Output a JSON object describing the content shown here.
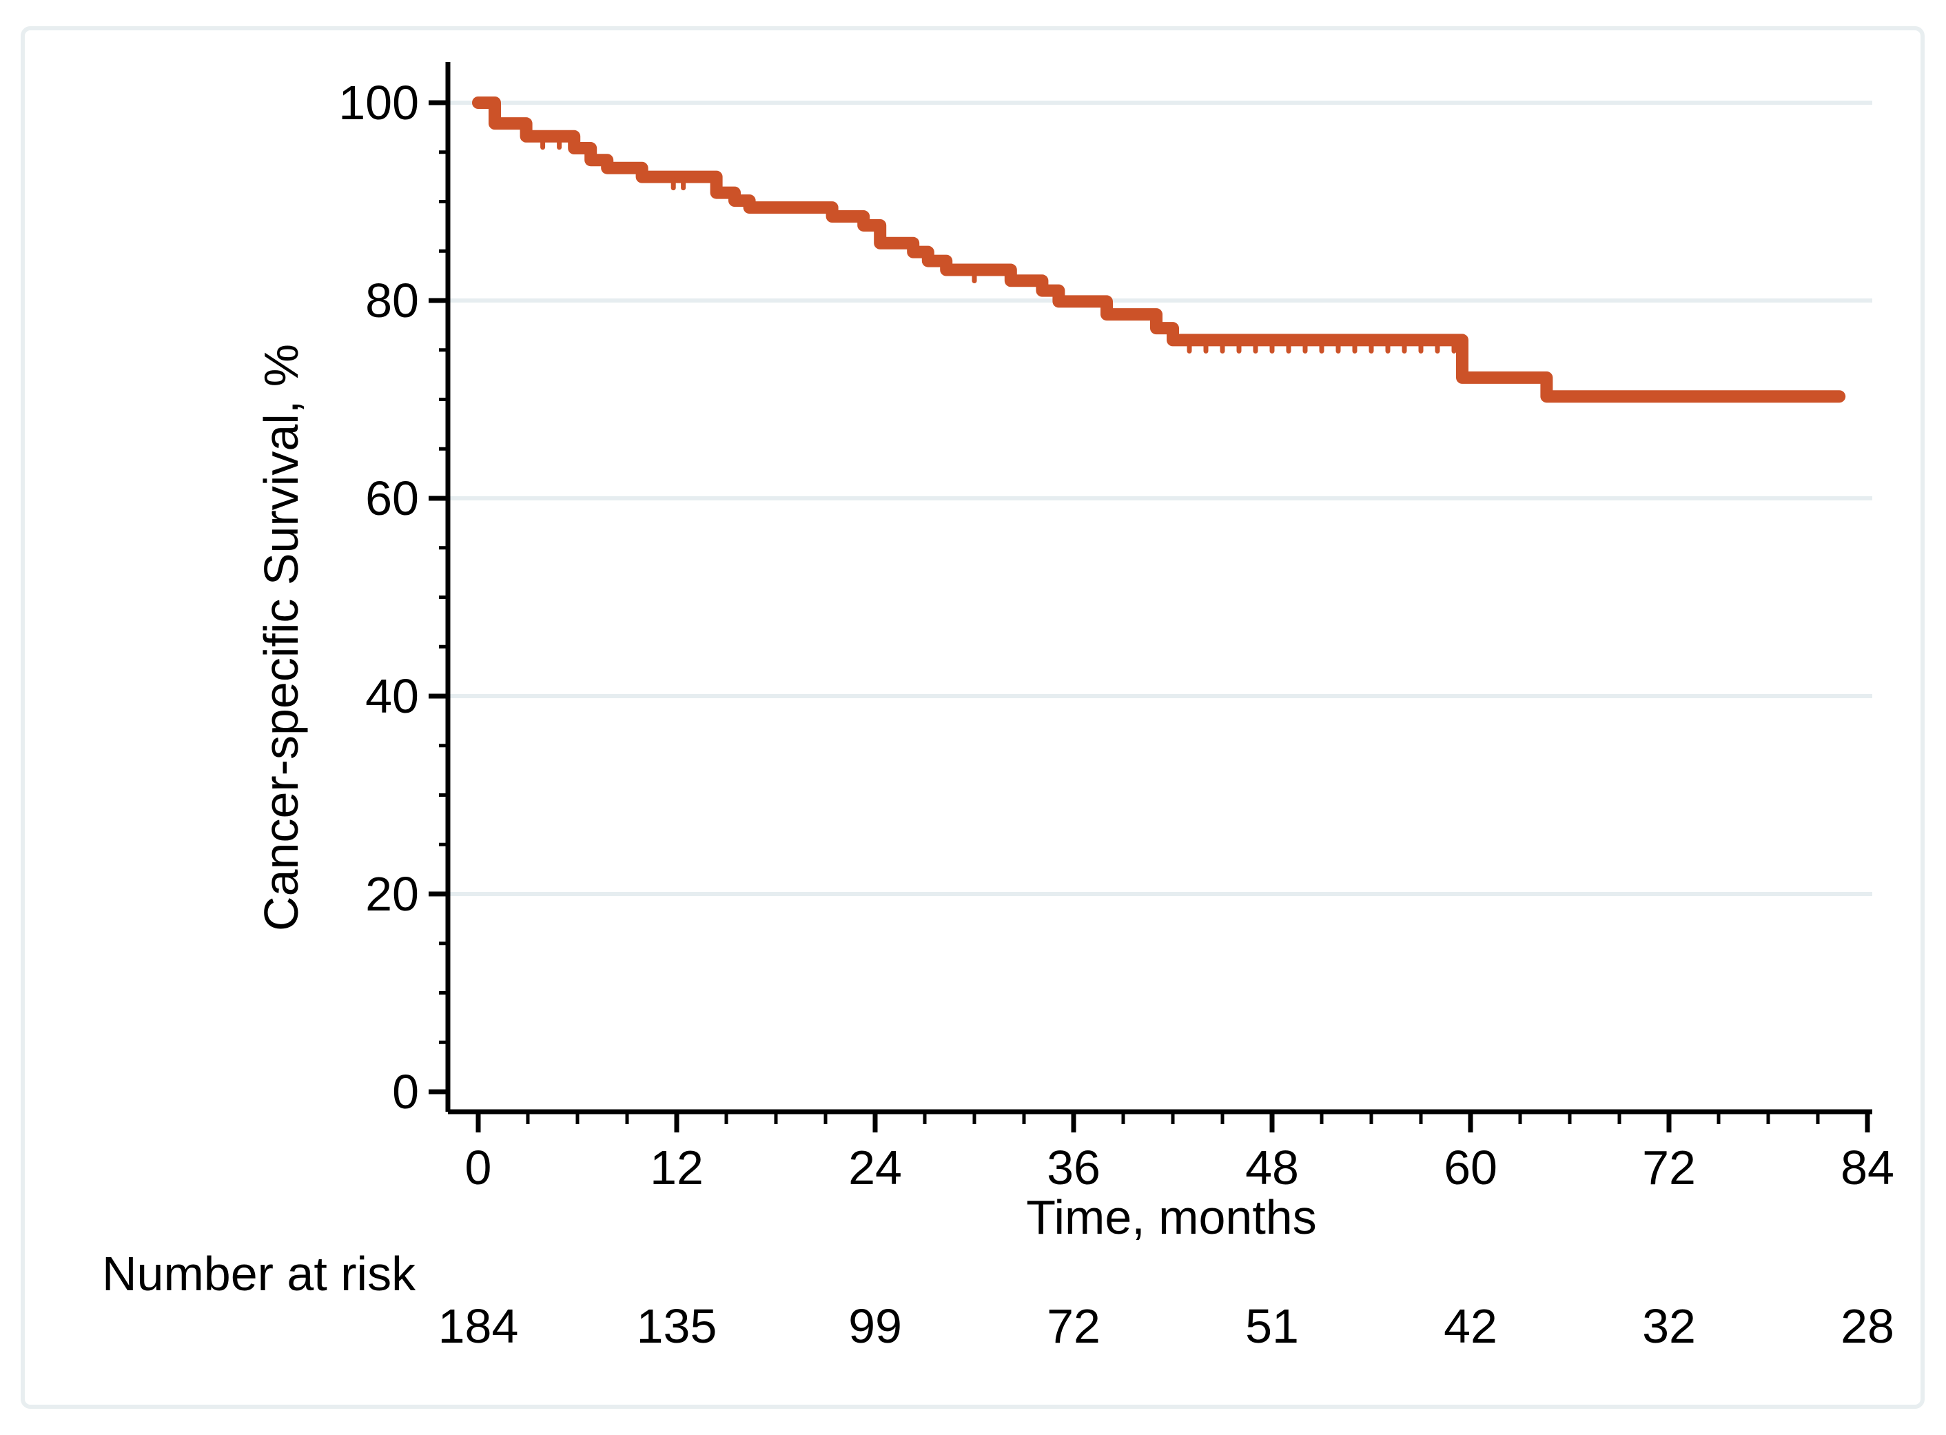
{
  "chart_data": {
    "type": "line",
    "subtype": "kaplan_meier_step",
    "title": "",
    "xlabel": "Time, months",
    "ylabel": "Cancer-specific Survival, %",
    "xlim": [
      0,
      84
    ],
    "ylim": [
      0,
      100
    ],
    "x_major_ticks": [
      0,
      12,
      24,
      36,
      48,
      60,
      72,
      84
    ],
    "x_minor_tick_step": 3,
    "y_major_ticks": [
      0,
      20,
      40,
      60,
      80,
      100
    ],
    "y_minor_tick_step": 5,
    "y_gridlines": [
      20,
      40,
      60,
      80,
      100
    ],
    "grid": true,
    "legend": "none",
    "axis_color": "#000000",
    "grid_color": "#e6edf0",
    "series": [
      {
        "name": "Cancer-specific survival",
        "color": "#cc5228",
        "steps": [
          [
            0,
            100
          ],
          [
            1,
            97.9
          ],
          [
            2.9,
            96.6
          ],
          [
            5.8,
            95.4
          ],
          [
            6.8,
            94.2
          ],
          [
            7.8,
            93.4
          ],
          [
            9.9,
            92.5
          ],
          [
            14.4,
            90.9
          ],
          [
            15.5,
            90.1
          ],
          [
            16.4,
            89.4
          ],
          [
            21.4,
            88.5
          ],
          [
            23.3,
            87.6
          ],
          [
            24.3,
            85.8
          ],
          [
            26.3,
            84.9
          ],
          [
            27.2,
            84.0
          ],
          [
            28.3,
            83.1
          ],
          [
            32.2,
            82.0
          ],
          [
            34.1,
            81.0
          ],
          [
            35.1,
            79.9
          ],
          [
            38.0,
            78.6
          ],
          [
            41.0,
            77.2
          ],
          [
            42.0,
            76.0
          ],
          [
            59.5,
            72.2
          ],
          [
            64.6,
            70.3
          ]
        ],
        "end_time": 82.3,
        "censor_marks": [
          [
            3.9,
            96.6
          ],
          [
            4.9,
            96.6
          ],
          [
            11.8,
            92.5
          ],
          [
            12.4,
            92.5
          ],
          [
            30.0,
            83.1
          ],
          [
            43,
            76.0
          ],
          [
            44,
            76.0
          ],
          [
            45,
            76.0
          ],
          [
            46,
            76.0
          ],
          [
            47,
            76.0
          ],
          [
            48,
            76.0
          ],
          [
            49,
            76.0
          ],
          [
            50,
            76.0
          ],
          [
            51,
            76.0
          ],
          [
            52,
            76.0
          ],
          [
            53,
            76.0
          ],
          [
            54,
            76.0
          ],
          [
            55,
            76.0
          ],
          [
            56,
            76.0
          ],
          [
            57,
            76.0
          ],
          [
            58,
            76.0
          ],
          [
            59,
            76.0
          ]
        ]
      }
    ],
    "number_at_risk": {
      "label": "Number at risk",
      "times": [
        0,
        12,
        24,
        36,
        48,
        60,
        72,
        84
      ],
      "counts": [
        184,
        135,
        99,
        72,
        51,
        42,
        32,
        28
      ]
    }
  }
}
